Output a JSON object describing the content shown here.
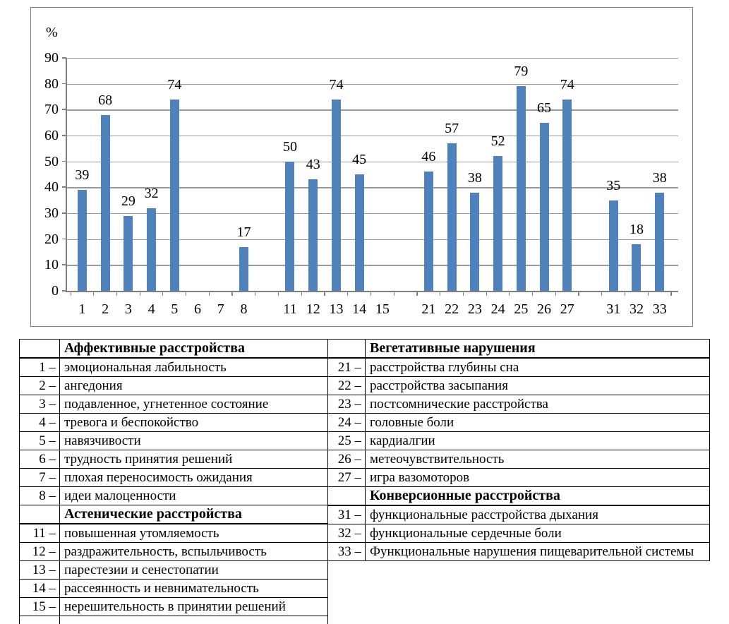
{
  "chart_data": {
    "type": "bar",
    "title": "",
    "unit_label": "%",
    "xlabel": "",
    "ylabel": "%",
    "ylim": [
      0,
      90
    ],
    "ytick_step": 10,
    "grid": true,
    "legend": "none",
    "bar_color": "#4f81bd",
    "grid_color": "#9a9a9a",
    "axis_color": "#7f7f7f",
    "categories": [
      "1",
      "2",
      "3",
      "4",
      "5",
      "6",
      "7",
      "8",
      "",
      "11",
      "12",
      "13",
      "14",
      "15",
      "",
      "21",
      "22",
      "23",
      "24",
      "25",
      "26",
      "27",
      "",
      "31",
      "32",
      "33"
    ],
    "values": [
      39,
      68,
      29,
      32,
      74,
      null,
      null,
      17,
      null,
      50,
      43,
      74,
      45,
      null,
      null,
      46,
      57,
      38,
      52,
      79,
      65,
      74,
      null,
      35,
      18,
      38
    ]
  },
  "legend_tables": {
    "left": {
      "rows": [
        {
          "header": "Аффективные расстройства"
        },
        {
          "num": "1 –",
          "label": "эмоциональная лабильность"
        },
        {
          "num": "2 –",
          "label": "ангедония"
        },
        {
          "num": "3 –",
          "label": "подавленное, угнетенное состояние"
        },
        {
          "num": "4 –",
          "label": "тревога и беспокойство"
        },
        {
          "num": "5 –",
          "label": "навязчивости"
        },
        {
          "num": "6 –",
          "label": "трудность принятия решений"
        },
        {
          "num": "7 –",
          "label": "плохая переносимость ожидания"
        },
        {
          "num": "8 –",
          "label": "идеи малоценности"
        },
        {
          "header": "Астенические расстройства"
        },
        {
          "num": "11 –",
          "label": "повышенная утомляемость"
        },
        {
          "num": "12 –",
          "label": "раздражительность, вспыльчивость"
        },
        {
          "num": "13 –",
          "label": "парестезии и сенестопатии"
        },
        {
          "num": "14 –",
          "label": "рассеянность и невнимательность"
        },
        {
          "num": "15 –",
          "label": "нерешительность в принятии решений"
        },
        {
          "partial": true
        }
      ]
    },
    "right": {
      "rows": [
        {
          "header": "Вегетативные нарушения"
        },
        {
          "num": "21 –",
          "label": "расстройства глубины сна"
        },
        {
          "num": "22 –",
          "label": "расстройства засыпания"
        },
        {
          "num": "23 –",
          "label": "постсомнические расстройства"
        },
        {
          "num": "24 –",
          "label": "головные боли"
        },
        {
          "num": "25 –",
          "label": "кардиалгии"
        },
        {
          "num": "26 –",
          "label": "метеочувствительность"
        },
        {
          "num": "27 –",
          "label": "игра вазомоторов"
        },
        {
          "header": "Конверсионные расстройства"
        },
        {
          "num": "31 –",
          "label": "функциональные расстройства дыхания"
        },
        {
          "num": "32 –",
          "label": "функциональные сердечные боли"
        },
        {
          "num": "33 –",
          "label": "Функциональные нарушения пищеварительной системы"
        }
      ]
    }
  }
}
